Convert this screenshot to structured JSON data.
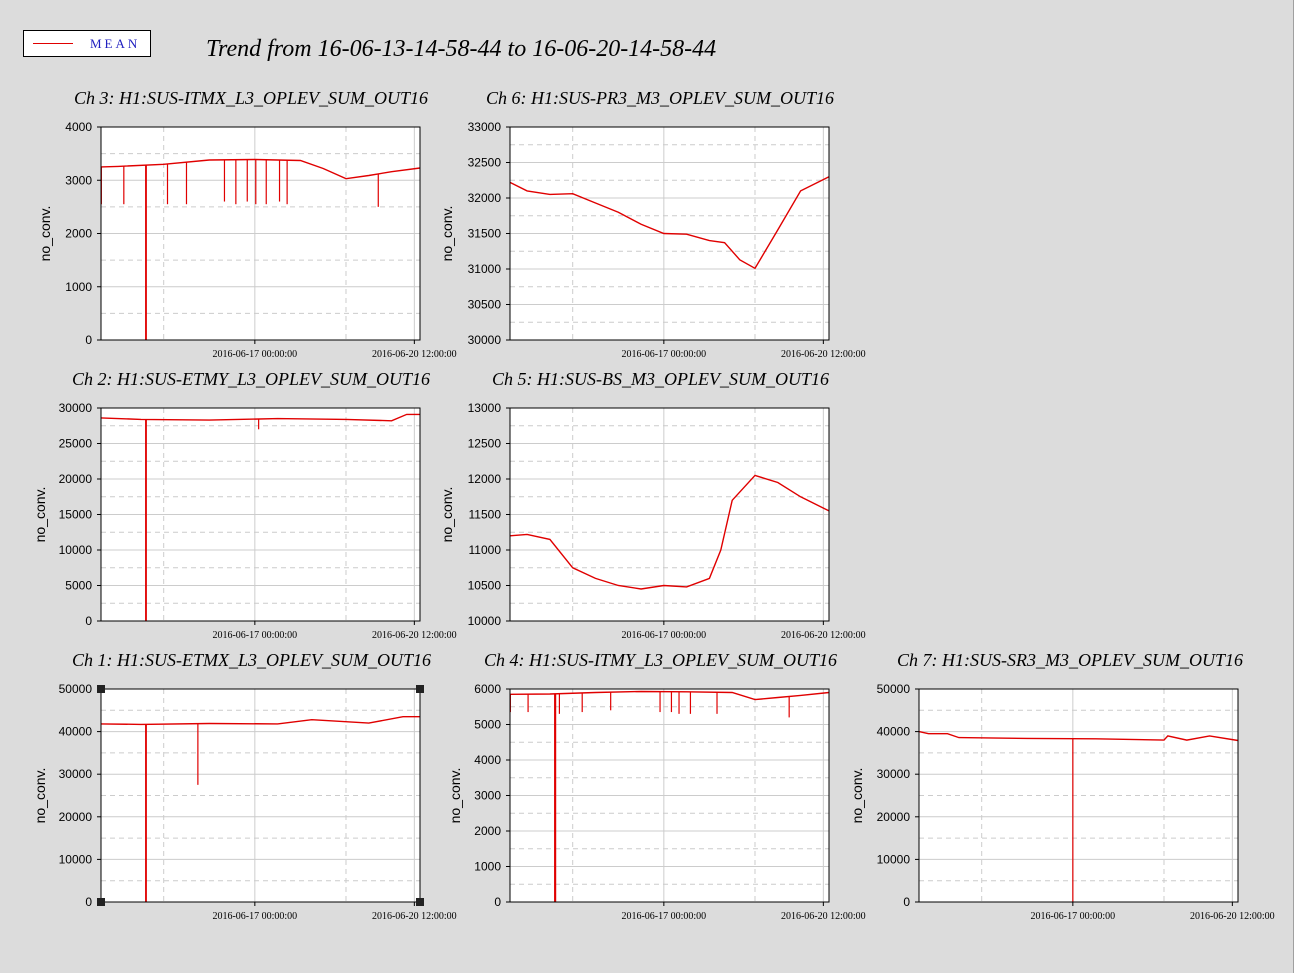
{
  "title": "Trend from 16-06-13-14-58-44 to 16-06-20-14-58-44",
  "legend": {
    "label": "MEAN",
    "color": "#e00000",
    "text_color": "#2020c0"
  },
  "colors": {
    "background": "#dcdcdc",
    "plot_bg": "#ffffff",
    "grid": "#cccccc",
    "trace": "#e00000"
  },
  "chart_data": [
    {
      "type": "line",
      "title": "Ch 3: H1:SUS-ITMX_L3_OPLEV_SUM_OUT16",
      "ylabel": "no_conv.",
      "ylim": [
        0,
        4000
      ],
      "yticks": [
        "0",
        "1000",
        "2000",
        "3000",
        "4000"
      ],
      "xlim": [
        "2016-06-13 14:58:44",
        "2016-06-20 14:58:44"
      ],
      "xticks": [
        "2016-06-17 00:00:00",
        "2016-06-20 12:00:00"
      ],
      "series": [
        {
          "x": [
            "2016-06-13 14:58:44",
            "2016-06-14 00:00:00",
            "2016-06-15 00:00:00",
            "2016-06-16 00:00:00",
            "2016-06-17 00:00:00",
            "2016-06-18 00:00:00",
            "2016-06-18 12:00:00",
            "2016-06-19 00:00:00",
            "2016-06-19 12:00:00",
            "2016-06-20 00:00:00",
            "2016-06-20 14:58:44"
          ],
          "values": [
            3250,
            3260,
            3300,
            3380,
            3390,
            3370,
            3220,
            3030,
            3090,
            3160,
            3230
          ]
        }
      ],
      "spikes": [
        {
          "x": "2016-06-13 15:10:00",
          "to": 2550
        },
        {
          "x": "2016-06-14 03:00:00",
          "to": 2550
        },
        {
          "x": "2016-06-14 14:30:00",
          "to": 0
        },
        {
          "x": "2016-06-14 14:50:00",
          "to": 0
        },
        {
          "x": "2016-06-15 02:00:00",
          "to": 2550
        },
        {
          "x": "2016-06-15 12:00:00",
          "to": 2550
        },
        {
          "x": "2016-06-16 08:00:00",
          "to": 2600
        },
        {
          "x": "2016-06-16 14:00:00",
          "to": 2550
        },
        {
          "x": "2016-06-16 20:00:00",
          "to": 2600
        },
        {
          "x": "2016-06-17 00:30:00",
          "to": 2550
        },
        {
          "x": "2016-06-17 06:00:00",
          "to": 2550
        },
        {
          "x": "2016-06-17 13:00:00",
          "to": 2600
        },
        {
          "x": "2016-06-17 17:00:00",
          "to": 2550
        },
        {
          "x": "2016-06-19 17:00:00",
          "to": 2500
        }
      ]
    },
    {
      "type": "line",
      "title": "Ch 6: H1:SUS-PR3_M3_OPLEV_SUM_OUT16",
      "ylabel": "no_conv.",
      "ylim": [
        30000,
        33000
      ],
      "yticks": [
        "30000",
        "30500",
        "31000",
        "31500",
        "32000",
        "32500",
        "33000"
      ],
      "xlim": [
        "2016-06-13 14:58:44",
        "2016-06-20 14:58:44"
      ],
      "xticks": [
        "2016-06-17 00:00:00",
        "2016-06-20 12:00:00"
      ],
      "series": [
        {
          "x": [
            "2016-06-13 14:58:44",
            "2016-06-14 00:00:00",
            "2016-06-14 12:00:00",
            "2016-06-15 00:00:00",
            "2016-06-15 12:00:00",
            "2016-06-16 00:00:00",
            "2016-06-16 12:00:00",
            "2016-06-17 00:00:00",
            "2016-06-17 12:00:00",
            "2016-06-18 00:00:00",
            "2016-06-18 08:00:00",
            "2016-06-18 16:00:00",
            "2016-06-19 00:00:00",
            "2016-06-19 12:00:00",
            "2016-06-20 00:00:00",
            "2016-06-20 14:58:44"
          ],
          "values": [
            32220,
            32100,
            32050,
            32060,
            31930,
            31800,
            31630,
            31500,
            31490,
            31400,
            31370,
            31130,
            31010,
            31550,
            32100,
            32300
          ]
        }
      ],
      "spikes": []
    },
    {
      "type": "line",
      "title": "Ch 2: H1:SUS-ETMY_L3_OPLEV_SUM_OUT16",
      "ylabel": "no_conv.",
      "ylim": [
        0,
        30000
      ],
      "yticks": [
        "0",
        "5000",
        "10000",
        "15000",
        "20000",
        "25000",
        "30000"
      ],
      "xlim": [
        "2016-06-13 14:58:44",
        "2016-06-20 14:58:44"
      ],
      "xticks": [
        "2016-06-17 00:00:00",
        "2016-06-20 12:00:00"
      ],
      "series": [
        {
          "x": [
            "2016-06-13 14:58:44",
            "2016-06-14 12:00:00",
            "2016-06-16 00:00:00",
            "2016-06-17 12:00:00",
            "2016-06-19 00:00:00",
            "2016-06-20 00:00:00",
            "2016-06-20 08:00:00",
            "2016-06-20 14:58:44"
          ],
          "values": [
            28600,
            28400,
            28300,
            28500,
            28400,
            28200,
            29100,
            29100
          ]
        }
      ],
      "spikes": [
        {
          "x": "2016-06-14 14:30:00",
          "to": 0
        },
        {
          "x": "2016-06-14 14:50:00",
          "to": 0
        },
        {
          "x": "2016-06-17 02:00:00",
          "to": 27000
        }
      ]
    },
    {
      "type": "line",
      "title": "Ch 5: H1:SUS-BS_M3_OPLEV_SUM_OUT16",
      "ylabel": "no_conv.",
      "ylim": [
        10000,
        13000
      ],
      "yticks": [
        "10000",
        "10500",
        "11000",
        "11500",
        "12000",
        "12500",
        "13000"
      ],
      "xlim": [
        "2016-06-13 14:58:44",
        "2016-06-20 14:58:44"
      ],
      "xticks": [
        "2016-06-17 00:00:00",
        "2016-06-20 12:00:00"
      ],
      "series": [
        {
          "x": [
            "2016-06-13 14:58:44",
            "2016-06-14 00:00:00",
            "2016-06-14 12:00:00",
            "2016-06-15 00:00:00",
            "2016-06-15 12:00:00",
            "2016-06-16 00:00:00",
            "2016-06-16 12:00:00",
            "2016-06-17 00:00:00",
            "2016-06-17 12:00:00",
            "2016-06-18 00:00:00",
            "2016-06-18 06:00:00",
            "2016-06-18 12:00:00",
            "2016-06-19 00:00:00",
            "2016-06-19 12:00:00",
            "2016-06-20 00:00:00",
            "2016-06-20 14:58:44"
          ],
          "values": [
            11200,
            11220,
            11150,
            10750,
            10600,
            10500,
            10450,
            10500,
            10480,
            10600,
            11000,
            11700,
            12050,
            11950,
            11750,
            11550
          ]
        }
      ],
      "spikes": []
    },
    {
      "type": "line",
      "title": "Ch 1: H1:SUS-ETMX_L3_OPLEV_SUM_OUT16",
      "ylabel": "no_conv.",
      "ylim": [
        0,
        50000
      ],
      "yticks": [
        "0",
        "10000",
        "20000",
        "30000",
        "40000",
        "50000"
      ],
      "xlim": [
        "2016-06-13 14:58:44",
        "2016-06-20 14:58:44"
      ],
      "xticks": [
        "2016-06-17 00:00:00",
        "2016-06-20 12:00:00"
      ],
      "series": [
        {
          "x": [
            "2016-06-13 14:58:44",
            "2016-06-14 12:00:00",
            "2016-06-16 00:00:00",
            "2016-06-17 12:00:00",
            "2016-06-18 06:00:00",
            "2016-06-19 12:00:00",
            "2016-06-20 06:00:00",
            "2016-06-20 14:58:44"
          ],
          "values": [
            41800,
            41700,
            41900,
            41800,
            42800,
            42000,
            43500,
            43500
          ]
        }
      ],
      "spikes": [
        {
          "x": "2016-06-14 14:30:00",
          "to": 0
        },
        {
          "x": "2016-06-14 14:50:00",
          "to": 0
        },
        {
          "x": "2016-06-15 18:00:00",
          "to": 27500
        }
      ]
    },
    {
      "type": "line",
      "title": "Ch 4: H1:SUS-ITMY_L3_OPLEV_SUM_OUT16",
      "ylabel": "no_conv.",
      "ylim": [
        0,
        6000
      ],
      "yticks": [
        "0",
        "1000",
        "2000",
        "3000",
        "4000",
        "5000",
        "6000"
      ],
      "xlim": [
        "2016-06-13 14:58:44",
        "2016-06-20 14:58:44"
      ],
      "xticks": [
        "2016-06-17 00:00:00",
        "2016-06-20 12:00:00"
      ],
      "series": [
        {
          "x": [
            "2016-06-13 14:58:44",
            "2016-06-14 12:00:00",
            "2016-06-15 12:00:00",
            "2016-06-16 12:00:00",
            "2016-06-17 12:00:00",
            "2016-06-18 12:00:00",
            "2016-06-19 00:00:00",
            "2016-06-19 12:00:00",
            "2016-06-20 00:00:00",
            "2016-06-20 14:58:44"
          ],
          "values": [
            5850,
            5860,
            5900,
            5930,
            5920,
            5900,
            5700,
            5760,
            5820,
            5900
          ]
        }
      ],
      "spikes": [
        {
          "x": "2016-06-13 15:10:00",
          "to": 5350
        },
        {
          "x": "2016-06-14 00:30:00",
          "to": 5350
        },
        {
          "x": "2016-06-14 14:30:00",
          "to": 0
        },
        {
          "x": "2016-06-14 15:00:00",
          "to": 0
        },
        {
          "x": "2016-06-14 17:00:00",
          "to": 5300
        },
        {
          "x": "2016-06-15 05:00:00",
          "to": 5350
        },
        {
          "x": "2016-06-15 20:00:00",
          "to": 5400
        },
        {
          "x": "2016-06-16 22:00:00",
          "to": 5350
        },
        {
          "x": "2016-06-17 04:00:00",
          "to": 5350
        },
        {
          "x": "2016-06-17 08:00:00",
          "to": 5300
        },
        {
          "x": "2016-06-17 14:00:00",
          "to": 5300
        },
        {
          "x": "2016-06-18 04:00:00",
          "to": 5300
        },
        {
          "x": "2016-06-19 18:00:00",
          "to": 5200
        }
      ]
    },
    {
      "type": "line",
      "title": "Ch 7: H1:SUS-SR3_M3_OPLEV_SUM_OUT16",
      "ylabel": "no_conv.",
      "ylim": [
        0,
        50000
      ],
      "yticks": [
        "0",
        "10000",
        "20000",
        "30000",
        "40000",
        "50000"
      ],
      "xlim": [
        "2016-06-13 14:58:44",
        "2016-06-20 14:58:44"
      ],
      "xticks": [
        "2016-06-17 00:00:00",
        "2016-06-20 12:00:00"
      ],
      "series": [
        {
          "x": [
            "2016-06-13 14:58:44",
            "2016-06-13 20:00:00",
            "2016-06-14 06:00:00",
            "2016-06-14 12:00:00",
            "2016-06-16 00:00:00",
            "2016-06-17 12:00:00",
            "2016-06-19 00:00:00",
            "2016-06-19 02:00:00",
            "2016-06-19 12:00:00",
            "2016-06-20 00:00:00",
            "2016-06-20 14:58:44"
          ],
          "values": [
            40000,
            39500,
            39500,
            38600,
            38400,
            38300,
            38000,
            39000,
            38000,
            39000,
            37900
          ]
        }
      ],
      "spikes": [
        {
          "x": "2016-06-17 00:00:00",
          "to": 0
        }
      ]
    }
  ]
}
